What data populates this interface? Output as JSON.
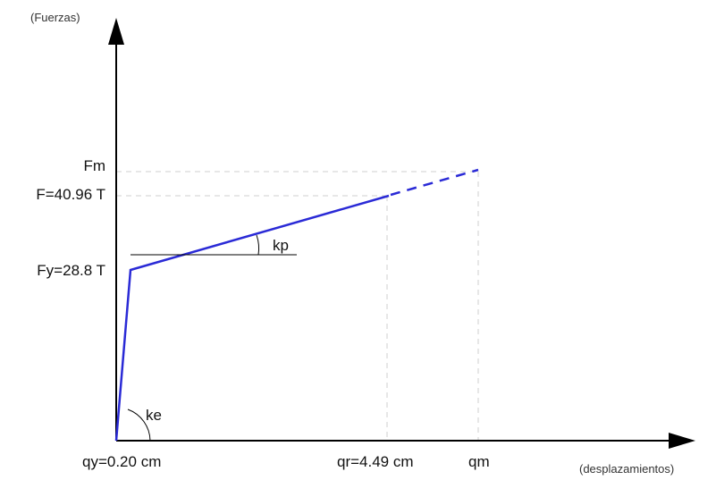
{
  "axes": {
    "y_label": "(Fuerzas)",
    "x_label": "(desplazamientos)"
  },
  "force_labels": {
    "fm": "Fm",
    "fr": "F=40.96 T",
    "fy": "Fy=28.8 T"
  },
  "displacement_labels": {
    "qy": "qy=0.20 cm",
    "qr": "qr=4.49 cm",
    "qm": "qm"
  },
  "slopes": {
    "kp": "kp",
    "ke": "ke"
  },
  "colors": {
    "curve": "#2a2ad6",
    "guides": "#cfcfcf",
    "axes": "#000000"
  }
}
